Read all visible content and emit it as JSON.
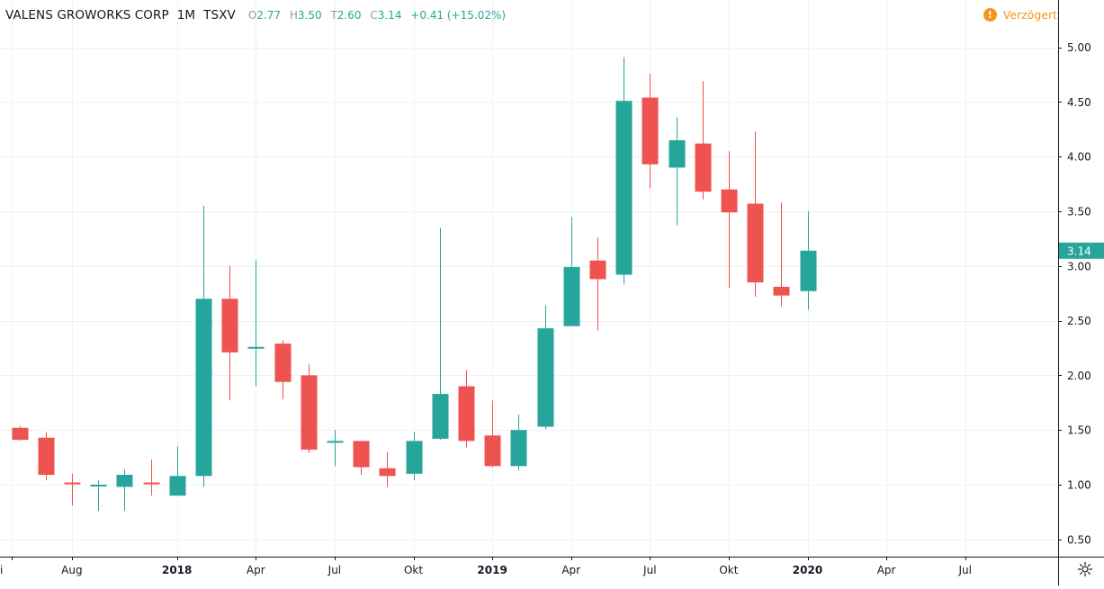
{
  "header": {
    "symbol_name": "VALENS GROWORKS CORP",
    "interval": "1M",
    "exchange": "TSXV",
    "o_label": "O",
    "o_value": "2.77",
    "h_label": "H",
    "h_value": "3.50",
    "t_label": "T",
    "t_value": "2.60",
    "c_label": "C",
    "c_value": "3.14",
    "change": "+0.41 (+15.02%)"
  },
  "status": {
    "delayed_label": "Verzögert",
    "delayed_icon": "!"
  },
  "colors": {
    "up": "#26a69a",
    "down": "#ef5350",
    "grid": "#eef1f5",
    "axis_text": "#131722",
    "delayed": "#f7931e"
  },
  "chart_data": {
    "type": "candlestick",
    "title": "VALENS GROWORKS CORP · 1M · TSXV",
    "ylim": [
      0.35,
      5.25
    ],
    "y_ticks": [
      "0.50",
      "1.00",
      "1.50",
      "2.00",
      "2.50",
      "3.00",
      "3.50",
      "4.00",
      "4.50",
      "5.00"
    ],
    "x_ticks": [
      {
        "label": "i",
        "bold": false
      },
      {
        "label": "Aug",
        "bold": false
      },
      {
        "label": "2018",
        "bold": true
      },
      {
        "label": "Apr",
        "bold": false
      },
      {
        "label": "Jul",
        "bold": false
      },
      {
        "label": "Okt",
        "bold": false
      },
      {
        "label": "2019",
        "bold": true
      },
      {
        "label": "Apr",
        "bold": false
      },
      {
        "label": "Jul",
        "bold": false
      },
      {
        "label": "Okt",
        "bold": false
      },
      {
        "label": "2020",
        "bold": true
      },
      {
        "label": "Apr",
        "bold": false
      },
      {
        "label": "Jul",
        "bold": false
      }
    ],
    "last_price_label": "3.14",
    "candles": [
      {
        "month": "2017-06",
        "o": 1.52,
        "h": 1.54,
        "l": 1.4,
        "c": 1.41
      },
      {
        "month": "2017-07",
        "o": 1.43,
        "h": 1.48,
        "l": 1.04,
        "c": 1.09
      },
      {
        "month": "2017-08",
        "o": 1.02,
        "h": 1.1,
        "l": 0.81,
        "c": 1.01
      },
      {
        "month": "2017-09",
        "o": 0.99,
        "h": 1.04,
        "l": 0.76,
        "c": 1.0
      },
      {
        "month": "2017-10",
        "o": 0.98,
        "h": 1.14,
        "l": 0.76,
        "c": 1.09
      },
      {
        "month": "2017-11",
        "o": 1.02,
        "h": 1.23,
        "l": 0.9,
        "c": 1.01
      },
      {
        "month": "2017-12",
        "o": 0.9,
        "h": 1.35,
        "l": 0.9,
        "c": 1.08
      },
      {
        "month": "2018-01",
        "o": 1.08,
        "h": 3.55,
        "l": 0.98,
        "c": 2.7
      },
      {
        "month": "2018-02",
        "o": 2.7,
        "h": 3.0,
        "l": 1.77,
        "c": 2.21
      },
      {
        "month": "2018-03",
        "o": 2.25,
        "h": 3.05,
        "l": 1.9,
        "c": 2.26
      },
      {
        "month": "2018-04",
        "o": 2.29,
        "h": 2.32,
        "l": 1.78,
        "c": 1.94
      },
      {
        "month": "2018-05",
        "o": 2.0,
        "h": 2.1,
        "l": 1.29,
        "c": 1.32
      },
      {
        "month": "2018-06",
        "o": 1.39,
        "h": 1.5,
        "l": 1.17,
        "c": 1.4
      },
      {
        "month": "2018-07",
        "o": 1.4,
        "h": 1.4,
        "l": 1.09,
        "c": 1.16
      },
      {
        "month": "2018-08",
        "o": 1.15,
        "h": 1.3,
        "l": 0.98,
        "c": 1.08
      },
      {
        "month": "2018-09",
        "o": 1.1,
        "h": 1.48,
        "l": 1.04,
        "c": 1.4
      },
      {
        "month": "2018-10",
        "o": 1.42,
        "h": 3.35,
        "l": 1.41,
        "c": 1.83
      },
      {
        "month": "2018-11",
        "o": 1.9,
        "h": 2.05,
        "l": 1.34,
        "c": 1.4
      },
      {
        "month": "2018-12",
        "o": 1.45,
        "h": 1.77,
        "l": 1.16,
        "c": 1.17
      },
      {
        "month": "2019-01",
        "o": 1.17,
        "h": 1.64,
        "l": 1.13,
        "c": 1.5
      },
      {
        "month": "2019-02",
        "o": 1.53,
        "h": 2.64,
        "l": 1.51,
        "c": 2.43
      },
      {
        "month": "2019-03",
        "o": 2.45,
        "h": 3.45,
        "l": 2.45,
        "c": 2.99
      },
      {
        "month": "2019-04",
        "o": 3.05,
        "h": 3.26,
        "l": 2.41,
        "c": 2.88
      },
      {
        "month": "2019-05",
        "o": 2.92,
        "h": 4.91,
        "l": 2.83,
        "c": 4.51
      },
      {
        "month": "2019-06",
        "o": 4.54,
        "h": 4.76,
        "l": 3.71,
        "c": 3.93
      },
      {
        "month": "2019-07",
        "o": 3.9,
        "h": 4.36,
        "l": 3.37,
        "c": 4.15
      },
      {
        "month": "2019-08",
        "o": 4.12,
        "h": 4.69,
        "l": 3.61,
        "c": 3.68
      },
      {
        "month": "2019-09",
        "o": 3.7,
        "h": 4.05,
        "l": 2.8,
        "c": 3.49
      },
      {
        "month": "2019-10",
        "o": 3.57,
        "h": 4.23,
        "l": 2.72,
        "c": 2.85
      },
      {
        "month": "2019-11",
        "o": 2.81,
        "h": 3.58,
        "l": 2.63,
        "c": 2.73
      },
      {
        "month": "2019-12",
        "o": 2.77,
        "h": 3.5,
        "l": 2.6,
        "c": 3.14
      }
    ]
  }
}
